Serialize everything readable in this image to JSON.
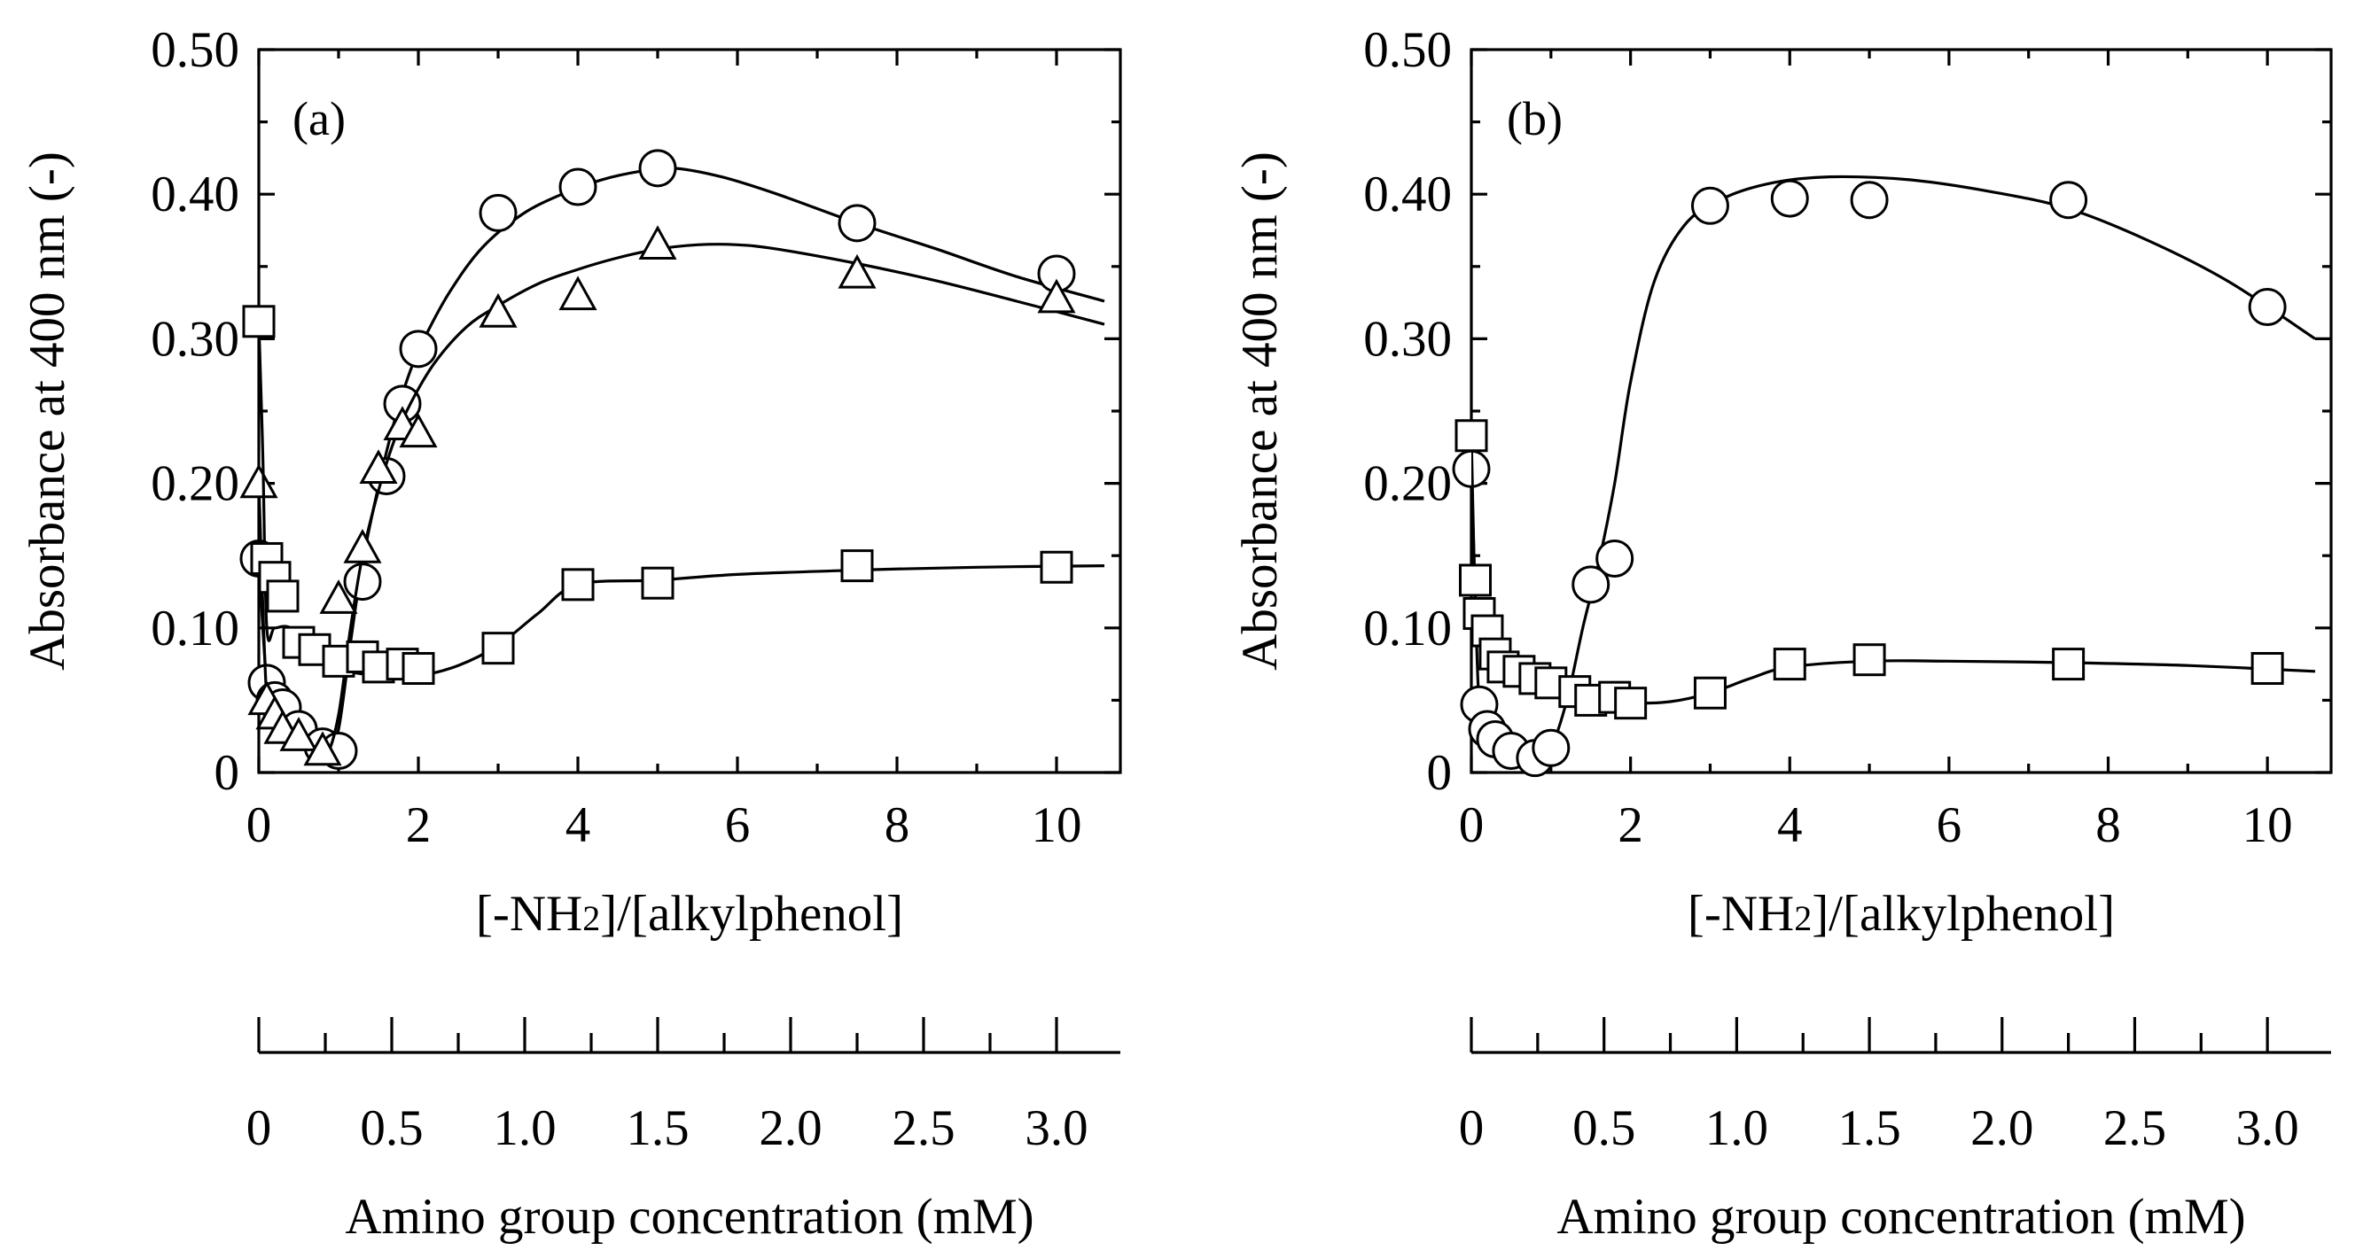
{
  "chart_data": [
    {
      "type": "scatter",
      "panel_label": "(a)",
      "xlabel": "[-NH2]/[alkylphenol]",
      "xlabel_parts": {
        "prefix": "[-NH",
        "subscript": "2",
        "suffix": "]/[alkylphenol]"
      },
      "ylabel": "Absorbance at 400 nm (-)",
      "xlim": [
        0,
        10.8
      ],
      "ylim": [
        0,
        0.5
      ],
      "xticks": [
        0,
        2,
        4,
        6,
        8,
        10
      ],
      "xtick_labels": [
        "0",
        "2",
        "4",
        "6",
        "8",
        "10"
      ],
      "yticks": [
        0,
        0.1,
        0.2,
        0.3,
        0.4,
        0.5
      ],
      "ytick_labels": [
        "0",
        "0.10",
        "0.20",
        "0.30",
        "0.40",
        "0.50"
      ],
      "secondary_axis": {
        "label": "Amino group concentration (mM)",
        "ticks": [
          0,
          0.5,
          1.0,
          1.5,
          2.0,
          2.5,
          3.0
        ],
        "tick_labels": [
          "0",
          "0.5",
          "1.0",
          "1.5",
          "2.0",
          "2.5",
          "3.0"
        ],
        "minor_ticks": [
          0.25,
          0.75,
          1.25,
          1.75,
          2.25,
          2.75
        ],
        "mM_per_ratio_unit": 0.3
      },
      "series": [
        {
          "name": "circle",
          "marker": "circle",
          "x": [
            0.0,
            0.1,
            0.2,
            0.3,
            0.5,
            0.8,
            1.0,
            1.3,
            1.6,
            1.8,
            2.0,
            3.0,
            4.0,
            5.0,
            7.5,
            10.0
          ],
          "y": [
            0.148,
            0.062,
            0.05,
            0.045,
            0.03,
            0.018,
            0.015,
            0.132,
            0.205,
            0.255,
            0.293,
            0.387,
            0.405,
            0.418,
            0.38,
            0.345
          ],
          "curve_x": [
            0.0,
            0.1,
            0.2,
            0.3,
            0.5,
            0.7,
            0.85,
            1.0,
            1.15,
            1.3,
            1.5,
            1.7,
            1.9,
            2.1,
            2.4,
            2.8,
            3.3,
            3.8,
            4.3,
            4.8,
            5.2,
            5.8,
            6.5,
            7.5,
            8.5,
            9.5,
            10.6
          ],
          "curve_y": [
            0.148,
            0.062,
            0.05,
            0.043,
            0.03,
            0.018,
            0.012,
            0.03,
            0.09,
            0.145,
            0.198,
            0.243,
            0.278,
            0.303,
            0.333,
            0.363,
            0.386,
            0.4,
            0.41,
            0.416,
            0.418,
            0.412,
            0.4,
            0.38,
            0.362,
            0.343,
            0.326
          ]
        },
        {
          "name": "triangle",
          "marker": "triangle",
          "x": [
            0.0,
            0.1,
            0.2,
            0.3,
            0.5,
            0.8,
            1.0,
            1.3,
            1.5,
            1.8,
            2.0,
            3.0,
            4.0,
            5.0,
            7.5,
            10.0
          ],
          "y": [
            0.2,
            0.05,
            0.04,
            0.03,
            0.025,
            0.015,
            0.12,
            0.155,
            0.21,
            0.24,
            0.235,
            0.318,
            0.33,
            0.365,
            0.345,
            0.328
          ],
          "curve_x": [
            0.0,
            0.1,
            0.2,
            0.3,
            0.5,
            0.7,
            0.85,
            1.0,
            1.15,
            1.3,
            1.5,
            1.7,
            1.9,
            2.2,
            2.6,
            3.0,
            3.5,
            4.0,
            4.5,
            5.0,
            5.5,
            6.0,
            6.5,
            7.5,
            8.5,
            9.5,
            10.6
          ],
          "curve_y": [
            0.2,
            0.05,
            0.04,
            0.033,
            0.024,
            0.016,
            0.012,
            0.04,
            0.1,
            0.15,
            0.195,
            0.23,
            0.255,
            0.283,
            0.308,
            0.323,
            0.338,
            0.348,
            0.356,
            0.362,
            0.365,
            0.365,
            0.362,
            0.352,
            0.34,
            0.326,
            0.31
          ]
        },
        {
          "name": "square",
          "marker": "square",
          "x": [
            0.0,
            0.1,
            0.2,
            0.3,
            0.5,
            0.7,
            1.0,
            1.3,
            1.5,
            1.8,
            2.0,
            3.0,
            4.0,
            5.0,
            7.5,
            10.0
          ],
          "y": [
            0.312,
            0.148,
            0.135,
            0.122,
            0.09,
            0.085,
            0.077,
            0.08,
            0.073,
            0.075,
            0.072,
            0.086,
            0.13,
            0.131,
            0.143,
            0.142
          ],
          "curve_x": [
            0.0,
            0.05,
            0.1,
            0.2,
            0.4,
            0.7,
            1.0,
            1.5,
            2.0,
            2.5,
            3.0,
            3.5,
            4.0,
            5.0,
            6.0,
            7.5,
            9.0,
            10.6
          ],
          "curve_y": [
            0.312,
            0.22,
            0.1,
            0.1,
            0.1,
            0.085,
            0.072,
            0.067,
            0.067,
            0.074,
            0.088,
            0.11,
            0.13,
            0.133,
            0.137,
            0.14,
            0.142,
            0.143
          ]
        }
      ]
    },
    {
      "type": "scatter",
      "panel_label": "(b)",
      "xlabel": "[-NH2]/[alkylphenol]",
      "xlabel_parts": {
        "prefix": "[-NH",
        "subscript": "2",
        "suffix": "]/[alkylphenol]"
      },
      "ylabel": "Absorbance at 400 nm (-)",
      "xlim": [
        0,
        10.8
      ],
      "ylim": [
        0,
        0.5
      ],
      "xticks": [
        0,
        2,
        4,
        6,
        8,
        10
      ],
      "xtick_labels": [
        "0",
        "2",
        "4",
        "6",
        "8",
        "10"
      ],
      "yticks": [
        0,
        0.1,
        0.2,
        0.3,
        0.4,
        0.5
      ],
      "ytick_labels": [
        "0",
        "0.10",
        "0.20",
        "0.30",
        "0.40",
        "0.50"
      ],
      "secondary_axis": {
        "label": "Amino group concentration (mM)",
        "ticks": [
          0,
          0.5,
          1.0,
          1.5,
          2.0,
          2.5,
          3.0
        ],
        "tick_labels": [
          "0",
          "0.5",
          "1.0",
          "1.5",
          "2.0",
          "2.5",
          "3.0"
        ],
        "minor_ticks": [
          0.25,
          0.75,
          1.25,
          1.75,
          2.25,
          2.75
        ],
        "mM_per_ratio_unit": 0.3
      },
      "series": [
        {
          "name": "circle",
          "marker": "circle",
          "x": [
            0.0,
            0.1,
            0.2,
            0.3,
            0.5,
            0.8,
            1.0,
            1.5,
            1.8,
            3.0,
            4.0,
            5.0,
            7.5,
            10.0
          ],
          "y": [
            0.21,
            0.047,
            0.03,
            0.023,
            0.015,
            0.01,
            0.017,
            0.13,
            0.148,
            0.392,
            0.397,
            0.396,
            0.396,
            0.322
          ],
          "curve_x": [
            0.0,
            0.05,
            0.1,
            0.2,
            0.3,
            0.5,
            0.7,
            0.85,
            1.0,
            1.2,
            1.4,
            1.6,
            1.8,
            2.0,
            2.3,
            2.7,
            3.2,
            3.8,
            4.5,
            5.5,
            6.5,
            7.5,
            8.5,
            9.5,
            10.6
          ],
          "curve_y": [
            0.21,
            0.12,
            0.047,
            0.03,
            0.022,
            0.014,
            0.01,
            0.01,
            0.017,
            0.05,
            0.1,
            0.145,
            0.2,
            0.27,
            0.34,
            0.38,
            0.398,
            0.408,
            0.412,
            0.41,
            0.402,
            0.39,
            0.368,
            0.34,
            0.3
          ]
        },
        {
          "name": "square",
          "marker": "square",
          "x": [
            0.0,
            0.05,
            0.1,
            0.2,
            0.3,
            0.4,
            0.6,
            0.8,
            1.0,
            1.3,
            1.5,
            1.8,
            2.0,
            3.0,
            4.0,
            5.0,
            7.5,
            10.0
          ],
          "y": [
            0.233,
            0.133,
            0.11,
            0.098,
            0.082,
            0.073,
            0.07,
            0.065,
            0.062,
            0.056,
            0.05,
            0.052,
            0.048,
            0.055,
            0.075,
            0.078,
            0.075,
            0.072
          ],
          "curve_x": [
            0.0,
            0.05,
            0.1,
            0.2,
            0.3,
            0.5,
            0.7,
            1.0,
            1.3,
            1.6,
            2.0,
            2.5,
            3.0,
            3.5,
            4.0,
            5.0,
            6.0,
            7.5,
            9.0,
            10.6
          ],
          "curve_y": [
            0.233,
            0.12,
            0.11,
            0.1,
            0.09,
            0.078,
            0.07,
            0.063,
            0.056,
            0.05,
            0.048,
            0.049,
            0.055,
            0.065,
            0.073,
            0.077,
            0.077,
            0.076,
            0.074,
            0.07
          ]
        }
      ]
    }
  ]
}
